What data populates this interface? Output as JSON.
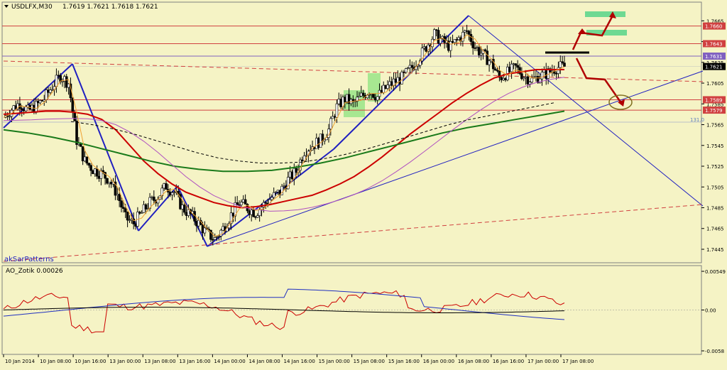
{
  "window": {
    "symbol_caption": "USDLFX,M30",
    "ohlc": "1.7619 1.7621 1.7618 1.7621",
    "indicator_label": "akSarPatterns",
    "fib_label": "131.0"
  },
  "colors": {
    "background": "#f5f3c5",
    "bull_candle": "#000000",
    "bear_candle": "#000000",
    "ma_red": "#cc0000",
    "ma_green": "#1a7a1a",
    "ma_orange": "#f0a030",
    "ma_purple": "#b050c0",
    "trend_blue": "#2020c0",
    "level_red": "#d04040",
    "level_purple": "#8060c0",
    "highlight_green": "#40d080",
    "arrow_red": "#b00000",
    "ao_red": "#cc0000",
    "ao_blue": "#2030c0"
  },
  "chart_data": [
    {
      "type": "candlestick",
      "title": "USDLFX,M30",
      "ylim": [
        1.7432,
        1.7683
      ],
      "y_ticks": [
        1.7445,
        1.7465,
        1.7485,
        1.7505,
        1.7525,
        1.7545,
        1.7565,
        1.7585,
        1.7605,
        1.7625,
        1.7645,
        1.7665
      ],
      "price_labels": [
        {
          "value": 1.766,
          "text": "1.7660",
          "color": "#d04040"
        },
        {
          "value": 1.7643,
          "text": "1.7643",
          "color": "#d04040"
        },
        {
          "value": 1.7631,
          "text": "1.7631",
          "color": "#8060c0"
        },
        {
          "value": 1.7621,
          "text": "1.7621",
          "color": "#000000"
        },
        {
          "value": 1.7589,
          "text": "1.7589",
          "color": "#d04040"
        },
        {
          "value": 1.7579,
          "text": "1.7579",
          "color": "#d04040"
        }
      ],
      "x_labels": [
        "10 Jan 2014",
        "10 Jan 08:00",
        "10 Jan 16:00",
        "13 Jan 00:00",
        "13 Jan 08:00",
        "13 Jan 16:00",
        "14 Jan 00:00",
        "14 Jan 08:00",
        "14 Jan 16:00",
        "15 Jan 00:00",
        "15 Jan 08:00",
        "15 Jan 16:00",
        "16 Jan 00:00",
        "16 Jan 08:00",
        "16 Jan 16:00",
        "17 Jan 00:00",
        "17 Jan 08:00"
      ],
      "close_path": [
        1.7572,
        1.758,
        1.7586,
        1.7578,
        1.7583,
        1.759,
        1.7602,
        1.7612,
        1.7605,
        1.755,
        1.753,
        1.7522,
        1.7518,
        1.7512,
        1.7498,
        1.7475,
        1.747,
        1.748,
        1.749,
        1.7496,
        1.7506,
        1.75,
        1.7485,
        1.7478,
        1.747,
        1.746,
        1.7455,
        1.7465,
        1.7478,
        1.749,
        1.7485,
        1.748,
        1.7488,
        1.7495,
        1.75,
        1.7512,
        1.752,
        1.754,
        1.7545,
        1.755,
        1.756,
        1.7582,
        1.759,
        1.7585,
        1.7592,
        1.7598,
        1.7592,
        1.76,
        1.7606,
        1.761,
        1.7618,
        1.7628,
        1.764,
        1.7652,
        1.7645,
        1.764,
        1.7648,
        1.7655,
        1.764,
        1.7632,
        1.7625,
        1.761,
        1.7615,
        1.762,
        1.7612,
        1.7608,
        1.7612,
        1.7615,
        1.762,
        1.7621
      ],
      "sma_red": [
        1.7575,
        1.7576,
        1.7577,
        1.7578,
        1.7578,
        1.7577,
        1.7575,
        1.757,
        1.756,
        1.7545,
        1.753,
        1.7518,
        1.7508,
        1.75,
        1.7495,
        1.749,
        1.7487,
        1.7485,
        1.7486,
        1.7488,
        1.7491,
        1.7494,
        1.7497,
        1.7502,
        1.7508,
        1.7515,
        1.7524,
        1.7534,
        1.7545,
        1.7556,
        1.7566,
        1.7576,
        1.7586,
        1.7595,
        1.7603,
        1.761,
        1.7614,
        1.7616,
        1.7618,
        1.7618,
        1.7618
      ],
      "sma_green": [
        1.756,
        1.7557,
        1.7553,
        1.7548,
        1.7542,
        1.7536,
        1.753,
        1.7525,
        1.7522,
        1.752,
        1.752,
        1.7521,
        1.7524,
        1.7528,
        1.7533,
        1.7539,
        1.7545,
        1.7551,
        1.7557,
        1.7562,
        1.7566,
        1.757,
        1.7574,
        1.7578
      ],
      "series": [
        {
          "name": "",
          "kind": "price"
        }
      ]
    },
    {
      "type": "line",
      "title": "AO_Zotik 0.00026",
      "ylim": [
        -0.0063,
        0.0063
      ],
      "y_ticks": [
        0.00549,
        0.0,
        -0.0058
      ],
      "y_tick_labels": [
        "0.00549",
        "0.00",
        "-0.0058"
      ],
      "series": [
        {
          "name": "",
          "color": "#cc0000"
        },
        {
          "name": "",
          "color": "#2030c0"
        },
        {
          "name": "",
          "color": "#000000"
        }
      ]
    }
  ]
}
